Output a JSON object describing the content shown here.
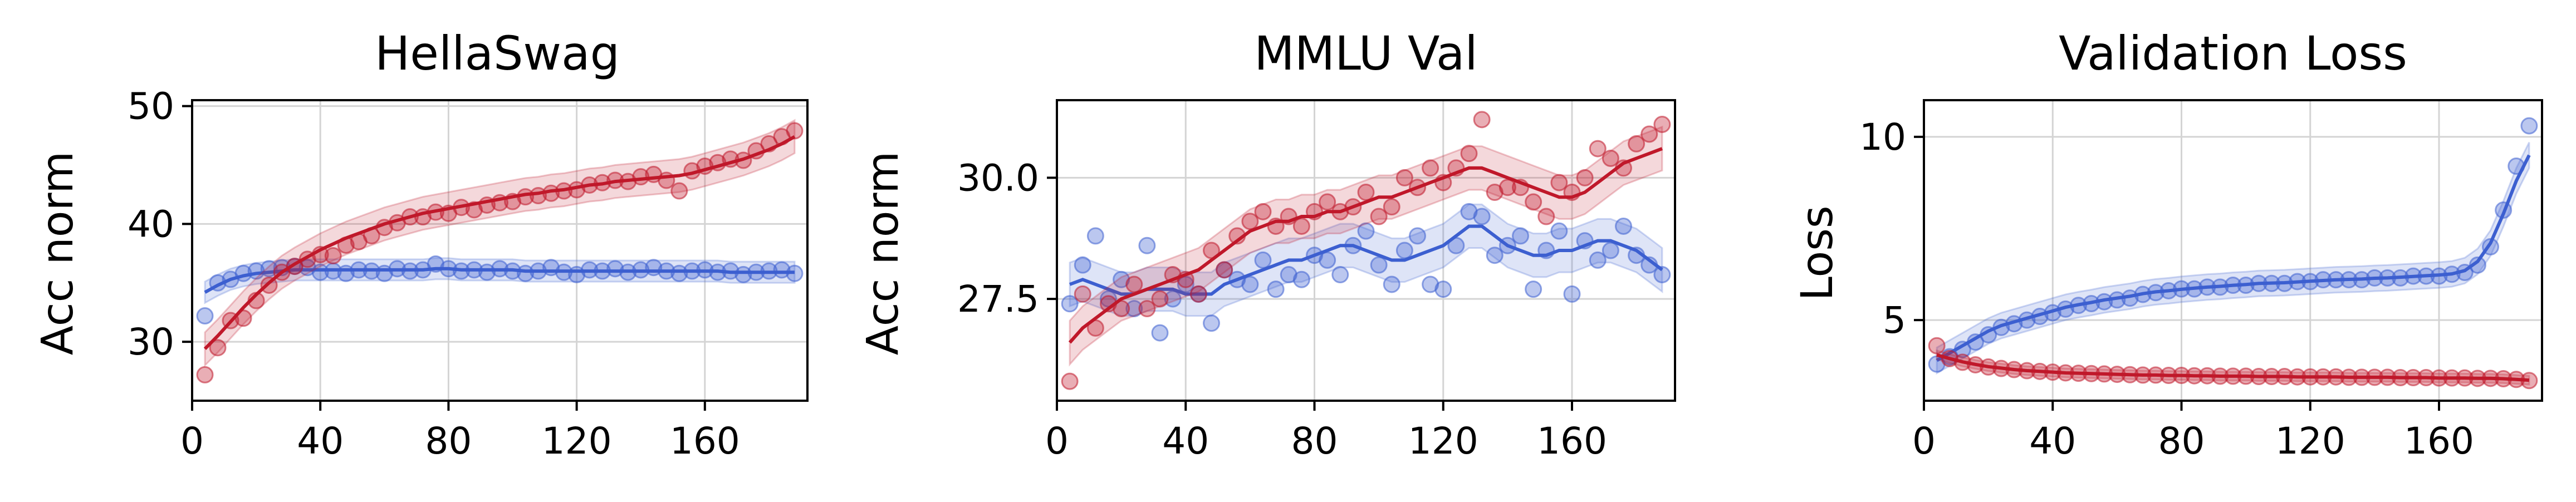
{
  "chart_data": [
    {
      "type": "line",
      "title": "HellaSwag",
      "xlabel": "",
      "ylabel": "Acc norm",
      "xlim": [
        0,
        192
      ],
      "ylim": [
        25,
        50.5
      ],
      "xticks": [
        "0",
        "40",
        "80",
        "120",
        "160"
      ],
      "yticks": [
        "30",
        "40",
        "50"
      ],
      "grid": true,
      "series": [
        {
          "color": "#3c5fd0",
          "band": 0.9,
          "x": [
            4,
            8,
            12,
            16,
            20,
            24,
            28,
            32,
            36,
            40,
            44,
            48,
            52,
            56,
            60,
            64,
            68,
            72,
            76,
            80,
            84,
            88,
            92,
            96,
            100,
            104,
            108,
            112,
            116,
            120,
            124,
            128,
            132,
            136,
            140,
            144,
            148,
            152,
            156,
            160,
            164,
            168,
            172,
            176,
            180,
            184,
            188
          ],
          "values": [
            32.2,
            35.0,
            35.3,
            35.8,
            36.0,
            36.2,
            36.3,
            36.4,
            36.3,
            35.9,
            36.0,
            35.8,
            36.1,
            36.0,
            35.8,
            36.2,
            36.0,
            36.1,
            36.6,
            36.2,
            36.0,
            36.1,
            35.9,
            36.2,
            36.0,
            35.8,
            36.0,
            36.3,
            35.9,
            35.7,
            36.1,
            36.0,
            36.2,
            35.9,
            36.1,
            36.3,
            36.0,
            35.8,
            36.0,
            36.1,
            35.9,
            36.0,
            35.7,
            35.9,
            36.0,
            36.1,
            35.8
          ],
          "trend": [
            34.2,
            34.8,
            35.3,
            35.6,
            35.8,
            35.9,
            36.0,
            36.1,
            36.1,
            36.1,
            36.1,
            36.1,
            36.1,
            36.1,
            36.1,
            36.1,
            36.1,
            36.1,
            36.2,
            36.2,
            36.1,
            36.1,
            36.1,
            36.1,
            36.1,
            36.0,
            36.0,
            36.0,
            36.0,
            36.0,
            36.0,
            36.0,
            36.0,
            36.0,
            36.0,
            36.0,
            36.0,
            36.0,
            36.0,
            36.0,
            36.0,
            35.9,
            35.9,
            35.9,
            35.9,
            35.9,
            35.9
          ]
        },
        {
          "color": "#c0182a",
          "band": 1.4,
          "x": [
            4,
            8,
            12,
            16,
            20,
            24,
            28,
            32,
            36,
            40,
            44,
            48,
            52,
            56,
            60,
            64,
            68,
            72,
            76,
            80,
            84,
            88,
            92,
            96,
            100,
            104,
            108,
            112,
            116,
            120,
            124,
            128,
            132,
            136,
            140,
            144,
            148,
            152,
            156,
            160,
            164,
            168,
            172,
            176,
            180,
            184,
            188
          ],
          "values": [
            27.2,
            29.5,
            31.8,
            32.0,
            33.5,
            34.8,
            35.9,
            36.4,
            37.0,
            37.4,
            37.3,
            38.2,
            38.5,
            39.0,
            39.7,
            40.1,
            40.6,
            40.6,
            41.0,
            40.9,
            41.4,
            41.2,
            41.6,
            41.8,
            41.9,
            42.3,
            42.4,
            42.6,
            42.8,
            42.9,
            43.3,
            43.5,
            43.7,
            43.6,
            44.0,
            44.2,
            43.7,
            42.8,
            44.5,
            44.9,
            45.2,
            45.5,
            45.4,
            46.2,
            46.8,
            47.4,
            47.9
          ],
          "trend": [
            29.4,
            30.5,
            31.7,
            32.9,
            34.0,
            35.0,
            35.9,
            36.6,
            37.2,
            37.8,
            38.3,
            38.8,
            39.2,
            39.6,
            40.0,
            40.3,
            40.6,
            40.9,
            41.1,
            41.3,
            41.5,
            41.7,
            41.9,
            42.1,
            42.3,
            42.5,
            42.6,
            42.8,
            42.9,
            43.1,
            43.3,
            43.4,
            43.6,
            43.7,
            43.8,
            43.9,
            44.0,
            44.1,
            44.3,
            44.6,
            44.9,
            45.2,
            45.5,
            45.9,
            46.3,
            46.8,
            47.4
          ]
        }
      ]
    },
    {
      "type": "line",
      "title": "MMLU Val",
      "xlabel": "",
      "ylabel": "Acc norm",
      "xlim": [
        0,
        192
      ],
      "ylim": [
        25.4,
        31.6
      ],
      "xticks": [
        "0",
        "40",
        "80",
        "120",
        "160"
      ],
      "yticks": [
        "27.5",
        "30.0"
      ],
      "grid": true,
      "series": [
        {
          "color": "#3c5fd0",
          "band": 0.45,
          "x": [
            4,
            8,
            12,
            16,
            20,
            24,
            28,
            32,
            36,
            40,
            44,
            48,
            52,
            56,
            60,
            64,
            68,
            72,
            76,
            80,
            84,
            88,
            92,
            96,
            100,
            104,
            108,
            112,
            116,
            120,
            124,
            128,
            132,
            136,
            140,
            144,
            148,
            152,
            156,
            160,
            164,
            168,
            172,
            176,
            180,
            184,
            188
          ],
          "values": [
            27.4,
            28.2,
            28.8,
            27.5,
            27.9,
            27.3,
            28.6,
            26.8,
            27.5,
            27.8,
            27.6,
            27.0,
            28.1,
            27.9,
            27.8,
            28.3,
            27.7,
            28.0,
            27.9,
            28.4,
            28.3,
            28.0,
            28.6,
            28.9,
            28.2,
            27.8,
            28.5,
            28.8,
            27.8,
            27.7,
            28.6,
            29.3,
            29.2,
            28.4,
            28.6,
            28.8,
            27.7,
            28.5,
            28.9,
            27.6,
            28.7,
            28.3,
            28.5,
            29.0,
            28.4,
            28.2,
            28.0
          ],
          "trend": [
            27.8,
            27.9,
            27.8,
            27.7,
            27.6,
            27.6,
            27.7,
            27.7,
            27.7,
            27.6,
            27.6,
            27.6,
            27.8,
            27.9,
            28.0,
            28.1,
            28.2,
            28.3,
            28.3,
            28.4,
            28.5,
            28.6,
            28.6,
            28.5,
            28.4,
            28.3,
            28.3,
            28.4,
            28.5,
            28.6,
            28.8,
            29.0,
            29.0,
            28.8,
            28.6,
            28.5,
            28.4,
            28.4,
            28.5,
            28.5,
            28.6,
            28.7,
            28.7,
            28.6,
            28.5,
            28.3,
            28.1
          ]
        },
        {
          "color": "#c0182a",
          "band": 0.45,
          "x": [
            4,
            8,
            12,
            16,
            20,
            24,
            28,
            32,
            36,
            40,
            44,
            48,
            52,
            56,
            60,
            64,
            68,
            72,
            76,
            80,
            84,
            88,
            92,
            96,
            100,
            104,
            108,
            112,
            116,
            120,
            124,
            128,
            132,
            136,
            140,
            144,
            148,
            152,
            156,
            160,
            164,
            168,
            172,
            176,
            180,
            184,
            188
          ],
          "values": [
            25.8,
            27.6,
            26.9,
            27.4,
            27.3,
            27.8,
            27.3,
            27.5,
            28.0,
            27.9,
            27.6,
            28.5,
            28.1,
            28.8,
            29.1,
            29.3,
            29.0,
            29.2,
            29.0,
            29.3,
            29.5,
            29.3,
            29.4,
            29.7,
            29.2,
            29.4,
            30.0,
            29.8,
            30.2,
            29.9,
            30.2,
            30.5,
            31.2,
            29.7,
            29.8,
            29.8,
            29.5,
            29.2,
            29.9,
            29.7,
            30.0,
            30.6,
            30.4,
            30.2,
            30.7,
            30.9,
            31.1
          ],
          "trend": [
            26.6,
            26.9,
            27.1,
            27.3,
            27.5,
            27.6,
            27.7,
            27.8,
            27.9,
            28.0,
            28.1,
            28.3,
            28.5,
            28.7,
            28.9,
            29.0,
            29.1,
            29.1,
            29.2,
            29.2,
            29.3,
            29.3,
            29.4,
            29.5,
            29.6,
            29.6,
            29.7,
            29.8,
            29.9,
            30.0,
            30.1,
            30.2,
            30.2,
            30.1,
            30.0,
            29.9,
            29.8,
            29.7,
            29.6,
            29.6,
            29.7,
            29.9,
            30.1,
            30.3,
            30.4,
            30.5,
            30.6
          ]
        }
      ]
    },
    {
      "type": "line",
      "title": "Validation Loss",
      "xlabel": "",
      "ylabel": "Loss",
      "xlim": [
        0,
        192
      ],
      "ylim": [
        2.8,
        11.0
      ],
      "xticks": [
        "0",
        "40",
        "80",
        "120",
        "160"
      ],
      "yticks": [
        "5",
        "10"
      ],
      "grid": true,
      "series": [
        {
          "color": "#3c5fd0",
          "band": 0.35,
          "x": [
            4,
            8,
            12,
            16,
            20,
            24,
            28,
            32,
            36,
            40,
            44,
            48,
            52,
            56,
            60,
            64,
            68,
            72,
            76,
            80,
            84,
            88,
            92,
            96,
            100,
            104,
            108,
            112,
            116,
            120,
            124,
            128,
            132,
            136,
            140,
            144,
            148,
            152,
            156,
            160,
            164,
            168,
            172,
            176,
            180,
            184,
            188
          ],
          "values": [
            3.8,
            4.0,
            4.2,
            4.4,
            4.6,
            4.8,
            4.9,
            5.0,
            5.1,
            5.2,
            5.3,
            5.4,
            5.45,
            5.5,
            5.55,
            5.6,
            5.7,
            5.75,
            5.8,
            5.85,
            5.85,
            5.9,
            5.9,
            5.95,
            5.95,
            6.0,
            6.0,
            6.0,
            6.05,
            6.05,
            6.1,
            6.1,
            6.1,
            6.1,
            6.15,
            6.15,
            6.15,
            6.2,
            6.2,
            6.2,
            6.25,
            6.3,
            6.5,
            7.0,
            8.0,
            9.2,
            10.3
          ],
          "trend": [
            3.9,
            4.1,
            4.3,
            4.5,
            4.7,
            4.85,
            4.95,
            5.05,
            5.15,
            5.25,
            5.35,
            5.42,
            5.48,
            5.55,
            5.6,
            5.65,
            5.72,
            5.77,
            5.8,
            5.84,
            5.87,
            5.9,
            5.92,
            5.95,
            5.97,
            6.0,
            6.01,
            6.02,
            6.04,
            6.06,
            6.08,
            6.1,
            6.11,
            6.12,
            6.14,
            6.15,
            6.17,
            6.19,
            6.21,
            6.23,
            6.26,
            6.35,
            6.6,
            7.1,
            7.9,
            8.8,
            9.5
          ]
        },
        {
          "color": "#c0182a",
          "band": 0.12,
          "x": [
            4,
            8,
            12,
            16,
            20,
            24,
            28,
            32,
            36,
            40,
            44,
            48,
            52,
            56,
            60,
            64,
            68,
            72,
            76,
            80,
            84,
            88,
            92,
            96,
            100,
            104,
            108,
            112,
            116,
            120,
            124,
            128,
            132,
            136,
            140,
            144,
            148,
            152,
            156,
            160,
            164,
            168,
            172,
            176,
            180,
            184,
            188
          ],
          "values": [
            4.3,
            3.95,
            3.85,
            3.78,
            3.72,
            3.68,
            3.65,
            3.62,
            3.6,
            3.58,
            3.56,
            3.55,
            3.54,
            3.53,
            3.52,
            3.51,
            3.5,
            3.5,
            3.49,
            3.49,
            3.48,
            3.48,
            3.47,
            3.47,
            3.47,
            3.46,
            3.46,
            3.46,
            3.45,
            3.45,
            3.45,
            3.45,
            3.44,
            3.44,
            3.44,
            3.44,
            3.43,
            3.43,
            3.43,
            3.42,
            3.42,
            3.42,
            3.41,
            3.41,
            3.4,
            3.38,
            3.35
          ],
          "trend": [
            4.05,
            3.95,
            3.86,
            3.79,
            3.73,
            3.69,
            3.65,
            3.62,
            3.6,
            3.58,
            3.56,
            3.55,
            3.54,
            3.53,
            3.52,
            3.51,
            3.5,
            3.5,
            3.49,
            3.49,
            3.48,
            3.48,
            3.47,
            3.47,
            3.47,
            3.46,
            3.46,
            3.46,
            3.45,
            3.45,
            3.45,
            3.45,
            3.44,
            3.44,
            3.44,
            3.44,
            3.43,
            3.43,
            3.43,
            3.42,
            3.42,
            3.42,
            3.41,
            3.41,
            3.4,
            3.38,
            3.36
          ]
        }
      ]
    }
  ]
}
